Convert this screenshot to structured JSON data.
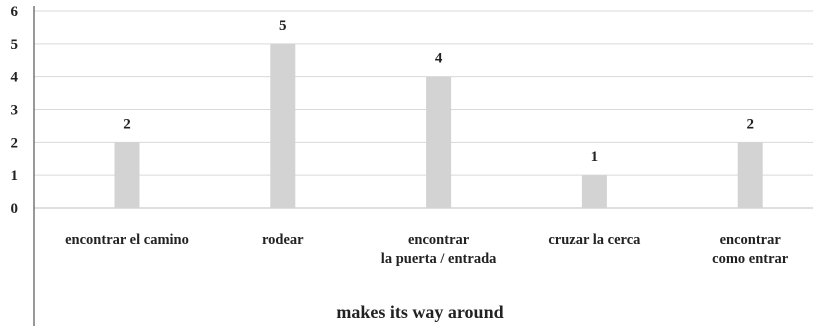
{
  "chart_data": {
    "type": "bar",
    "categories": [
      [
        "encontrar el camino"
      ],
      [
        "rodear"
      ],
      [
        "encontrar",
        "la puerta / entrada"
      ],
      [
        "cruzar la cerca"
      ],
      [
        "encontrar",
        "como entrar"
      ]
    ],
    "values": [
      2,
      5,
      4,
      1,
      2
    ],
    "data_labels": [
      "2",
      "5",
      "4",
      "1",
      "2"
    ],
    "y_ticks": [
      0,
      1,
      2,
      3,
      4,
      5,
      6
    ],
    "ylim": [
      0,
      6
    ],
    "xlabel": "makes its way around",
    "ylabel": "",
    "title": "",
    "grid": true,
    "legend": "none",
    "colors": {
      "bar": "#d3d3d3",
      "grid": "#d9d9d9",
      "axis": "#555555",
      "text": "#222222"
    }
  }
}
